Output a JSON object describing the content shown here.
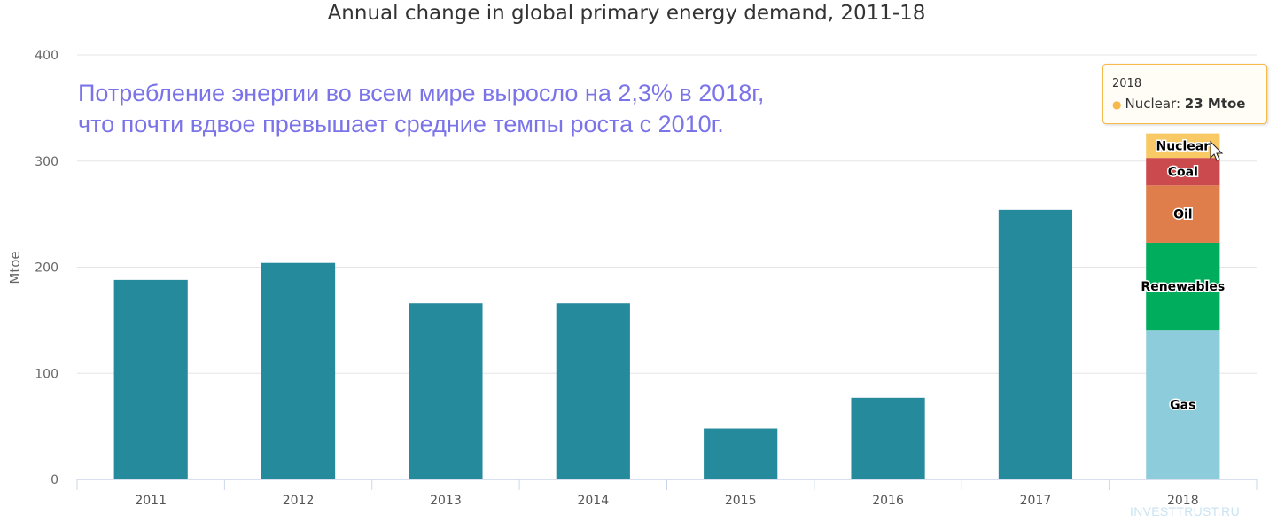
{
  "chart_data": {
    "type": "bar",
    "title": "Annual change in global primary energy demand, 2011-18",
    "xlabel": "",
    "ylabel": "Mtoe",
    "ylim": [
      0,
      400
    ],
    "yticks": [
      0,
      100,
      200,
      300,
      400
    ],
    "grid": true,
    "categories": [
      "2011",
      "2012",
      "2013",
      "2014",
      "2015",
      "2016",
      "2017",
      "2018"
    ],
    "values": [
      188,
      204,
      166,
      166,
      48,
      77,
      254,
      null
    ],
    "bar_color": "#258a9b",
    "stacked_2018": [
      {
        "name": "Gas",
        "value": 141,
        "color": "#8dccdb"
      },
      {
        "name": "Renewables",
        "value": 82,
        "color": "#00ad5c"
      },
      {
        "name": "Oil",
        "value": 54,
        "color": "#e07e4b"
      },
      {
        "name": "Coal",
        "value": 26,
        "color": "#ca4a4e"
      },
      {
        "name": "Nuclear",
        "value": 23,
        "color": "#f8c965"
      }
    ],
    "annotation": [
      "Потребление энергии во всем мире выросло на 2,3% в 2018г,",
      "что почти вдвое превышает средние темпы роста с 2010г."
    ]
  },
  "tooltip": {
    "year": "2018",
    "series": "Nuclear:",
    "value": "23 Mtoe",
    "dot_color": "#f6b94a"
  },
  "watermark": "INVESTTRUST.RU"
}
